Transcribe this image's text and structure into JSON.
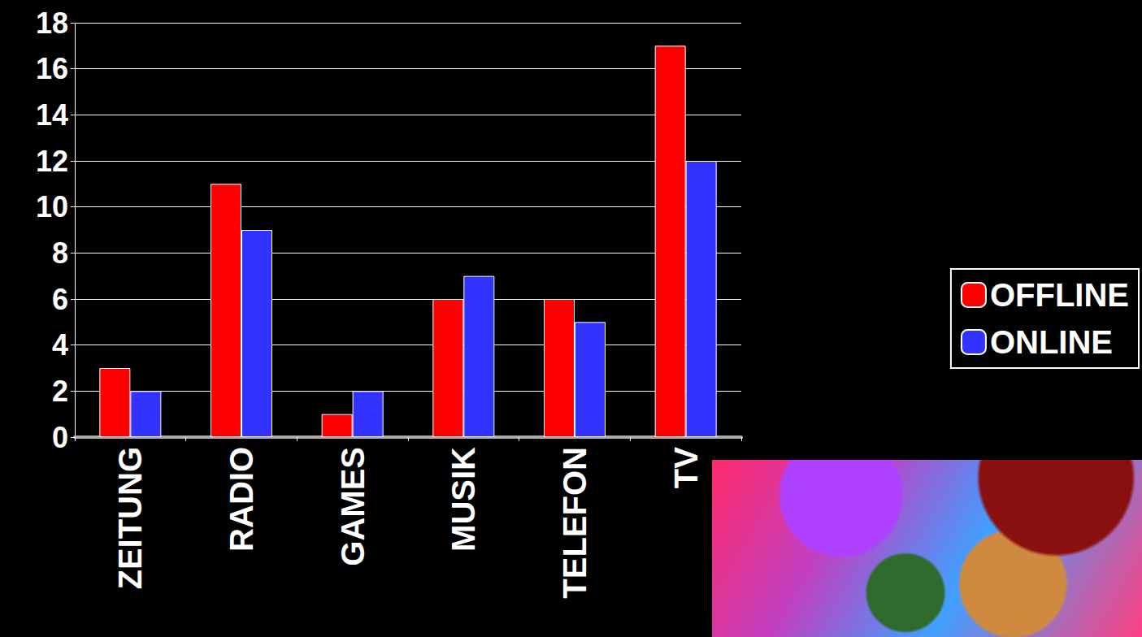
{
  "chart_data": {
    "type": "bar",
    "categories": [
      "ZEITUNG",
      "RADIO",
      "GAMES",
      "MUSIK",
      "TELEFON",
      "TV"
    ],
    "series": [
      {
        "name": "OFFLINE",
        "color": "#ff0000",
        "values": [
          3,
          11,
          1,
          6,
          6,
          17
        ]
      },
      {
        "name": "ONLINE",
        "color": "#3333ff",
        "values": [
          2,
          9,
          2,
          7,
          5,
          12
        ]
      }
    ],
    "ylim": [
      0,
      18
    ],
    "yticks": [
      0,
      2,
      4,
      6,
      8,
      10,
      12,
      14,
      16,
      18
    ],
    "grid": true,
    "legend": "right"
  }
}
